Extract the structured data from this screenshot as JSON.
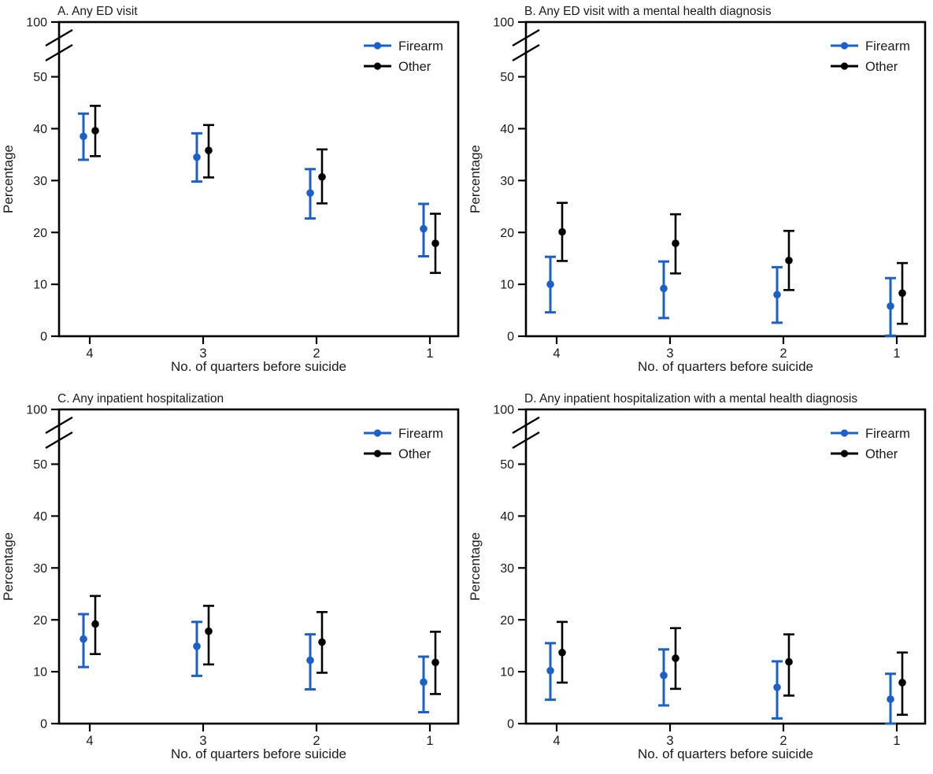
{
  "figure": {
    "background": "#ffffff",
    "text_color": "#1a1a1a",
    "frame_color": "#000000",
    "series_colors": {
      "Firearm": "#1b5fc8",
      "Other": "#000000"
    },
    "legend": {
      "position": "top-right-inside",
      "items": [
        "Firearm",
        "Other"
      ]
    },
    "xlabel": "No. of quarters before suicide",
    "ylabel": "Percentage",
    "x_tick_labels": [
      "4",
      "3",
      "2",
      "1"
    ],
    "y_tick_labels": [
      "0",
      "10",
      "20",
      "30",
      "40",
      "50"
    ],
    "y_break_top_label": "100",
    "y_axis_break": true
  },
  "chart_data": [
    {
      "type": "errorbar",
      "panel": "A",
      "title": "A. Any ED visit",
      "categories": [
        "4",
        "3",
        "2",
        "1"
      ],
      "xlabel": "No. of quarters before suicide",
      "ylabel": "Percentage",
      "ylim": [
        0,
        50
      ],
      "broken_axis_top_tick": 100,
      "grid": false,
      "legend_entries": [
        "Firearm",
        "Other"
      ],
      "series": [
        {
          "name": "Firearm",
          "color": "#1b5fc8",
          "points": [
            {
              "x": "4",
              "y": 38.5,
              "lo": 34.0,
              "hi": 42.9
            },
            {
              "x": "3",
              "y": 34.5,
              "lo": 29.8,
              "hi": 39.1
            },
            {
              "x": "2",
              "y": 27.6,
              "lo": 22.7,
              "hi": 32.2
            },
            {
              "x": "1",
              "y": 20.7,
              "lo": 15.4,
              "hi": 25.5
            }
          ]
        },
        {
          "name": "Other",
          "color": "#000000",
          "points": [
            {
              "x": "4",
              "y": 39.6,
              "lo": 34.7,
              "hi": 44.4
            },
            {
              "x": "3",
              "y": 35.8,
              "lo": 30.6,
              "hi": 40.7
            },
            {
              "x": "2",
              "y": 30.7,
              "lo": 25.6,
              "hi": 36.0
            },
            {
              "x": "1",
              "y": 17.9,
              "lo": 12.2,
              "hi": 23.6
            }
          ]
        }
      ]
    },
    {
      "type": "errorbar",
      "panel": "B",
      "title": "B. Any ED visit with a mental health diagnosis",
      "categories": [
        "4",
        "3",
        "2",
        "1"
      ],
      "xlabel": "No. of quarters before suicide",
      "ylabel": "Percentage",
      "ylim": [
        0,
        50
      ],
      "broken_axis_top_tick": 100,
      "grid": false,
      "legend_entries": [
        "Firearm",
        "Other"
      ],
      "series": [
        {
          "name": "Firearm",
          "color": "#1b5fc8",
          "points": [
            {
              "x": "4",
              "y": 10.0,
              "lo": 4.6,
              "hi": 15.3
            },
            {
              "x": "3",
              "y": 9.2,
              "lo": 3.5,
              "hi": 14.4
            },
            {
              "x": "2",
              "y": 8.0,
              "lo": 2.6,
              "hi": 13.3
            },
            {
              "x": "1",
              "y": 5.8,
              "lo": 0.1,
              "hi": 11.2
            }
          ]
        },
        {
          "name": "Other",
          "color": "#000000",
          "points": [
            {
              "x": "4",
              "y": 20.1,
              "lo": 14.5,
              "hi": 25.7
            },
            {
              "x": "3",
              "y": 17.9,
              "lo": 12.1,
              "hi": 23.5
            },
            {
              "x": "2",
              "y": 14.6,
              "lo": 8.9,
              "hi": 20.3
            },
            {
              "x": "1",
              "y": 8.3,
              "lo": 2.4,
              "hi": 14.1
            }
          ]
        }
      ]
    },
    {
      "type": "errorbar",
      "panel": "C",
      "title": "C. Any inpatient hospitalization",
      "categories": [
        "4",
        "3",
        "2",
        "1"
      ],
      "xlabel": "No. of quarters before suicide",
      "ylabel": "Percentage",
      "ylim": [
        0,
        50
      ],
      "broken_axis_top_tick": 100,
      "grid": false,
      "legend_entries": [
        "Firearm",
        "Other"
      ],
      "series": [
        {
          "name": "Firearm",
          "color": "#1b5fc8",
          "points": [
            {
              "x": "4",
              "y": 16.3,
              "lo": 10.9,
              "hi": 21.1
            },
            {
              "x": "3",
              "y": 14.9,
              "lo": 9.2,
              "hi": 19.6
            },
            {
              "x": "2",
              "y": 12.2,
              "lo": 6.6,
              "hi": 17.2
            },
            {
              "x": "1",
              "y": 8.0,
              "lo": 2.2,
              "hi": 12.9
            }
          ]
        },
        {
          "name": "Other",
          "color": "#000000",
          "points": [
            {
              "x": "4",
              "y": 19.2,
              "lo": 13.4,
              "hi": 24.6
            },
            {
              "x": "3",
              "y": 17.8,
              "lo": 11.4,
              "hi": 22.7
            },
            {
              "x": "2",
              "y": 15.7,
              "lo": 9.8,
              "hi": 21.5
            },
            {
              "x": "1",
              "y": 11.8,
              "lo": 5.7,
              "hi": 17.7
            }
          ]
        }
      ]
    },
    {
      "type": "errorbar",
      "panel": "D",
      "title": "D. Any inpatient hospitalization with a mental health diagnosis",
      "categories": [
        "4",
        "3",
        "2",
        "1"
      ],
      "xlabel": "No. of quarters before suicide",
      "ylabel": "Percentage",
      "ylim": [
        0,
        50
      ],
      "broken_axis_top_tick": 100,
      "grid": false,
      "legend_entries": [
        "Firearm",
        "Other"
      ],
      "series": [
        {
          "name": "Firearm",
          "color": "#1b5fc8",
          "points": [
            {
              "x": "4",
              "y": 10.2,
              "lo": 4.6,
              "hi": 15.5
            },
            {
              "x": "3",
              "y": 9.3,
              "lo": 3.5,
              "hi": 14.3
            },
            {
              "x": "2",
              "y": 7.0,
              "lo": 1.0,
              "hi": 12.0
            },
            {
              "x": "1",
              "y": 4.7,
              "lo": 0.0,
              "hi": 9.6
            }
          ]
        },
        {
          "name": "Other",
          "color": "#000000",
          "points": [
            {
              "x": "4",
              "y": 13.7,
              "lo": 7.9,
              "hi": 19.6
            },
            {
              "x": "3",
              "y": 12.6,
              "lo": 6.7,
              "hi": 18.4
            },
            {
              "x": "2",
              "y": 11.9,
              "lo": 5.4,
              "hi": 17.2
            },
            {
              "x": "1",
              "y": 7.9,
              "lo": 1.7,
              "hi": 13.7
            }
          ]
        }
      ]
    }
  ]
}
